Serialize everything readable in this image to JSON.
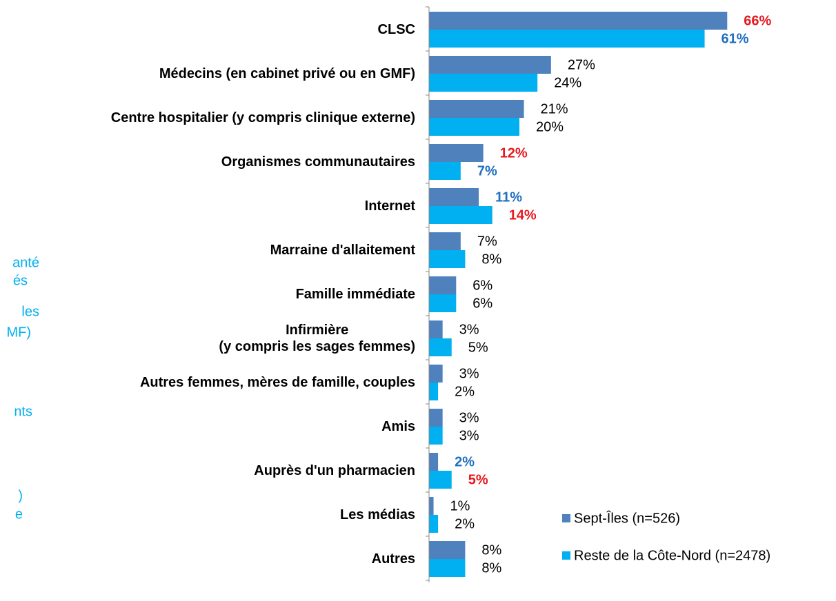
{
  "chart_data": {
    "type": "barh",
    "categories": [
      "CLSC",
      "Médecins (en cabinet privé ou en GMF)",
      "Centre hospitalier (y compris clinique externe)",
      "Organismes communautaires",
      "Internet",
      "Marraine d'allaitement",
      "Famille immédiate",
      "Infirmière\n(y compris les sages femmes)",
      "Autres femmes, mères de famille, couples",
      "Amis",
      "Auprès d'un pharmacien",
      "Les médias",
      "Autres"
    ],
    "series": [
      {
        "name": "Sept-Îles (n=526)",
        "color": "#4f81bd",
        "values": [
          66,
          27,
          21,
          12,
          11,
          7,
          6,
          3,
          3,
          3,
          2,
          1,
          8
        ],
        "value_labels": [
          "66%",
          "27%",
          "21%",
          "12%",
          "11%",
          "7%",
          "6%",
          "3%",
          "3%",
          "3%",
          "2%",
          "1%",
          "8%"
        ],
        "label_colors": [
          "#e8171f",
          "#000000",
          "#000000",
          "#e8171f",
          "#1f6fc0",
          "#000000",
          "#000000",
          "#000000",
          "#000000",
          "#000000",
          "#1f6fc0",
          "#000000",
          "#000000"
        ]
      },
      {
        "name": "Reste de la Côte-Nord (n=2478)",
        "color": "#00b0f0",
        "values": [
          61,
          24,
          20,
          7,
          14,
          8,
          6,
          5,
          2,
          3,
          5,
          2,
          8
        ],
        "value_labels": [
          "61%",
          "24%",
          "20%",
          "7%",
          "14%",
          "8%",
          "6%",
          "5%",
          "2%",
          "3%",
          "5%",
          "2%",
          "8%"
        ],
        "label_colors": [
          "#1f6fc0",
          "#000000",
          "#000000",
          "#1f6fc0",
          "#e8171f",
          "#000000",
          "#000000",
          "#000000",
          "#000000",
          "#000000",
          "#e8171f",
          "#000000",
          "#000000"
        ]
      }
    ],
    "xlim": [
      0,
      100
    ],
    "side_fragments": [
      "anté",
      "és",
      "les",
      "MF)",
      "nts",
      ")",
      "e"
    ]
  }
}
